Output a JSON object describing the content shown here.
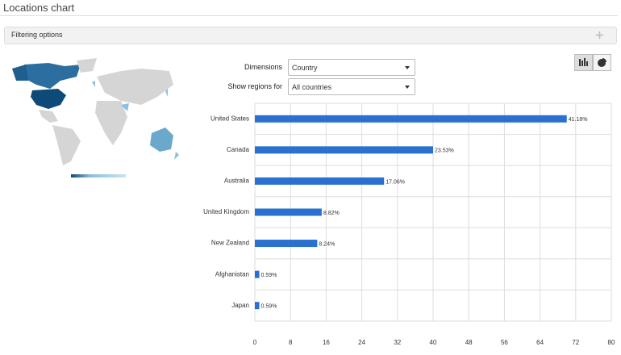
{
  "header": {
    "title": "Locations chart"
  },
  "filter_panel": {
    "title": "Filtering options"
  },
  "controls": {
    "dimensions_label": "Dimensions",
    "dimensions_value": "Country",
    "regions_label": "Show regions for",
    "regions_value": "All countries"
  },
  "chart_data": {
    "type": "bar",
    "orientation": "horizontal",
    "categories": [
      "United States",
      "Canada",
      "Australia",
      "United Kingdom",
      "New Zealand",
      "Afghanistan",
      "Japan"
    ],
    "values": [
      70,
      40,
      29,
      15,
      14,
      1,
      1
    ],
    "bar_labels": [
      "41.18%",
      "23.53%",
      "17.06%",
      "8.82%",
      "8.24%",
      "0.59%",
      "0.59%"
    ],
    "color": "#2a70d0",
    "xlim": [
      0,
      80
    ],
    "xticks": [
      0,
      8,
      16,
      24,
      32,
      40,
      48,
      56,
      64,
      72,
      80
    ],
    "grid": true
  }
}
